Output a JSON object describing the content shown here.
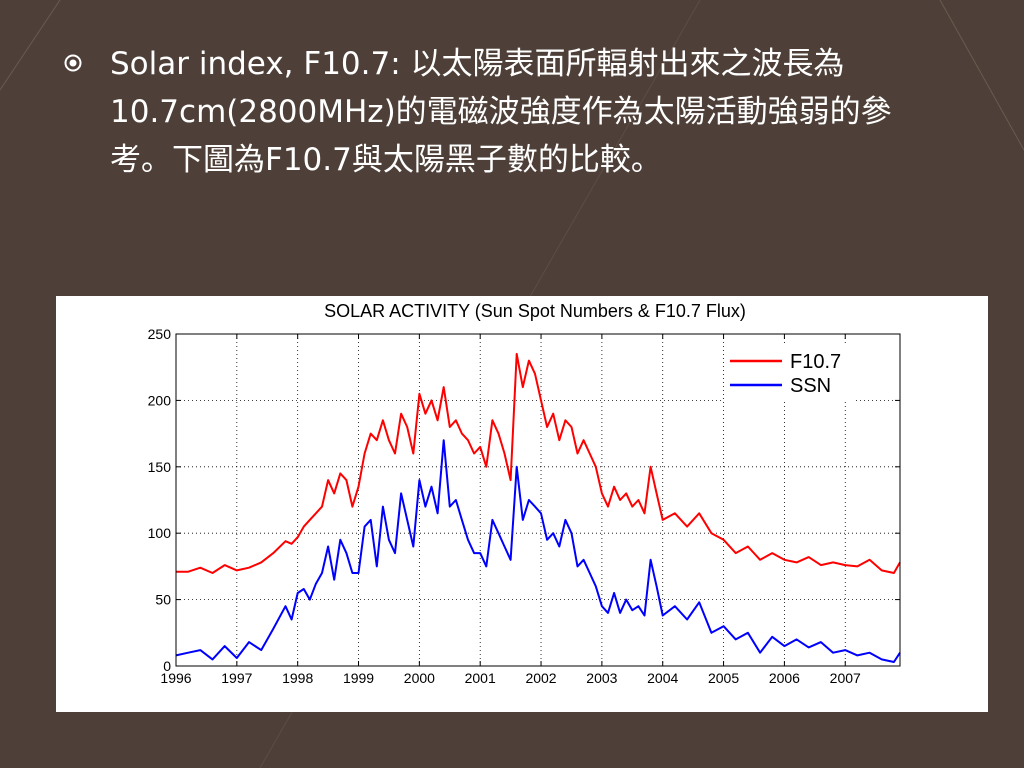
{
  "bullet": {
    "text": "Solar index, F10.7: 以太陽表面所輻射出來之波長為10.7cm(2800MHz)的電磁波強度作為太陽活動強弱的參考。下圖為F10.7與太陽黑子數的比較。",
    "icon": "circled-dot-icon"
  },
  "colors": {
    "background": "#4e4038",
    "text": "#ffffff",
    "f107": "#ff0000",
    "ssn": "#0000ff"
  },
  "chart_data": {
    "type": "line",
    "title": "SOLAR ACTIVITY (Sun Spot Numbers & F10.7 Flux)",
    "xlabel": "",
    "ylabel": "",
    "xlim": [
      1996,
      2007.9
    ],
    "ylim": [
      0,
      250
    ],
    "x_ticks": [
      1996,
      1997,
      1998,
      1999,
      2000,
      2001,
      2002,
      2003,
      2004,
      2005,
      2006,
      2007
    ],
    "x_tick_labels": [
      "1996",
      "1997",
      "1998",
      "1999",
      "2000",
      "2001",
      "2002",
      "2003",
      "2004",
      "2005",
      "2006",
      "2007"
    ],
    "y_ticks": [
      0,
      50,
      100,
      150,
      200,
      250
    ],
    "y_tick_labels": [
      "0",
      "50",
      "100",
      "150",
      "200",
      "250"
    ],
    "grid": true,
    "legend": "top-right",
    "series": [
      {
        "name": "F10.7",
        "color": "#ff0000",
        "x": [
          1996.0,
          1996.2,
          1996.4,
          1996.6,
          1996.8,
          1997.0,
          1997.2,
          1997.4,
          1997.6,
          1997.8,
          1997.9,
          1998.0,
          1998.1,
          1998.2,
          1998.3,
          1998.4,
          1998.5,
          1998.6,
          1998.7,
          1998.8,
          1998.9,
          1999.0,
          1999.1,
          1999.2,
          1999.3,
          1999.4,
          1999.5,
          1999.6,
          1999.7,
          1999.8,
          1999.9,
          2000.0,
          2000.1,
          2000.2,
          2000.3,
          2000.4,
          2000.5,
          2000.6,
          2000.7,
          2000.8,
          2000.9,
          2001.0,
          2001.1,
          2001.2,
          2001.3,
          2001.4,
          2001.5,
          2001.6,
          2001.7,
          2001.8,
          2001.9,
          2002.0,
          2002.1,
          2002.2,
          2002.3,
          2002.4,
          2002.5,
          2002.6,
          2002.7,
          2002.8,
          2002.9,
          2003.0,
          2003.1,
          2003.2,
          2003.3,
          2003.4,
          2003.5,
          2003.6,
          2003.7,
          2003.8,
          2003.9,
          2004.0,
          2004.2,
          2004.4,
          2004.6,
          2004.8,
          2005.0,
          2005.2,
          2005.4,
          2005.6,
          2005.8,
          2006.0,
          2006.2,
          2006.4,
          2006.6,
          2006.8,
          2007.0,
          2007.2,
          2007.4,
          2007.6,
          2007.8,
          2007.9
        ],
        "values": [
          71,
          71,
          74,
          70,
          76,
          72,
          74,
          78,
          85,
          94,
          92,
          97,
          105,
          110,
          115,
          120,
          140,
          130,
          145,
          140,
          120,
          135,
          160,
          175,
          170,
          185,
          170,
          160,
          190,
          180,
          160,
          205,
          190,
          200,
          185,
          210,
          180,
          185,
          175,
          170,
          160,
          165,
          150,
          185,
          175,
          160,
          140,
          235,
          210,
          230,
          220,
          200,
          180,
          190,
          170,
          185,
          180,
          160,
          170,
          160,
          150,
          130,
          120,
          135,
          125,
          130,
          120,
          125,
          115,
          150,
          130,
          110,
          115,
          105,
          115,
          100,
          95,
          85,
          90,
          80,
          85,
          80,
          78,
          82,
          76,
          78,
          76,
          75,
          80,
          72,
          70,
          78
        ]
      },
      {
        "name": "SSN",
        "color": "#0000ff",
        "x": [
          1996.0,
          1996.2,
          1996.4,
          1996.6,
          1996.8,
          1997.0,
          1997.2,
          1997.4,
          1997.6,
          1997.8,
          1997.9,
          1998.0,
          1998.1,
          1998.2,
          1998.3,
          1998.4,
          1998.5,
          1998.6,
          1998.7,
          1998.8,
          1998.9,
          1999.0,
          1999.1,
          1999.2,
          1999.3,
          1999.4,
          1999.5,
          1999.6,
          1999.7,
          1999.8,
          1999.9,
          2000.0,
          2000.1,
          2000.2,
          2000.3,
          2000.4,
          2000.5,
          2000.6,
          2000.7,
          2000.8,
          2000.9,
          2001.0,
          2001.1,
          2001.2,
          2001.3,
          2001.4,
          2001.5,
          2001.6,
          2001.7,
          2001.8,
          2001.9,
          2002.0,
          2002.1,
          2002.2,
          2002.3,
          2002.4,
          2002.5,
          2002.6,
          2002.7,
          2002.8,
          2002.9,
          2003.0,
          2003.1,
          2003.2,
          2003.3,
          2003.4,
          2003.5,
          2003.6,
          2003.7,
          2003.8,
          2003.9,
          2004.0,
          2004.2,
          2004.4,
          2004.6,
          2004.8,
          2005.0,
          2005.2,
          2005.4,
          2005.6,
          2005.8,
          2006.0,
          2006.2,
          2006.4,
          2006.6,
          2006.8,
          2007.0,
          2007.2,
          2007.4,
          2007.6,
          2007.8,
          2007.9
        ],
        "values": [
          8,
          10,
          12,
          5,
          15,
          6,
          18,
          12,
          28,
          45,
          35,
          55,
          58,
          50,
          62,
          70,
          90,
          65,
          95,
          85,
          70,
          70,
          105,
          110,
          75,
          120,
          95,
          85,
          130,
          110,
          90,
          140,
          120,
          135,
          115,
          170,
          120,
          125,
          110,
          95,
          85,
          85,
          75,
          110,
          100,
          90,
          80,
          150,
          110,
          125,
          120,
          115,
          95,
          100,
          90,
          110,
          100,
          75,
          80,
          70,
          60,
          45,
          40,
          55,
          40,
          50,
          42,
          45,
          38,
          80,
          60,
          38,
          45,
          35,
          48,
          25,
          30,
          20,
          25,
          10,
          22,
          15,
          20,
          14,
          18,
          10,
          12,
          8,
          10,
          5,
          3,
          10
        ]
      }
    ]
  }
}
